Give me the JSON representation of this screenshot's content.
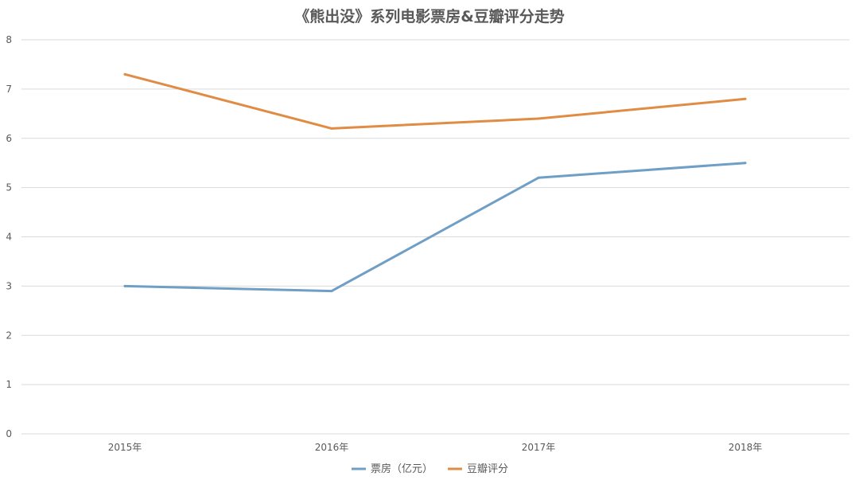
{
  "chart_data": {
    "type": "line",
    "title": "《熊出没》系列电影票房&豆瓣评分走势",
    "categories": [
      "2015年",
      "2016年",
      "2017年",
      "2018年"
    ],
    "series": [
      {
        "name": "票房（亿元）",
        "values": [
          3.0,
          2.9,
          5.2,
          5.5
        ],
        "color": "#6f9fc6"
      },
      {
        "name": "豆瓣评分",
        "values": [
          7.3,
          6.2,
          6.4,
          6.8
        ],
        "color": "#e08c45"
      }
    ],
    "ylim": [
      0,
      8
    ],
    "yticks": [
      "0",
      "1",
      "2",
      "3",
      "4",
      "5",
      "6",
      "7",
      "8"
    ],
    "grid": true,
    "legend_position": "bottom"
  }
}
